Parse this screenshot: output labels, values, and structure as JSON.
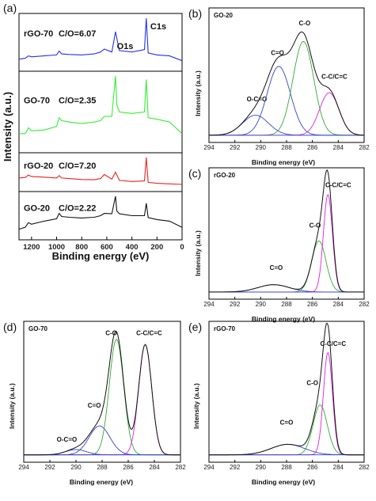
{
  "panels": [
    {
      "id": "a",
      "letter": "(a)",
      "xlabel": "Binding energy (eV)",
      "ylabel": "Intensity (a.u.)"
    },
    {
      "id": "b",
      "letter": "(b)",
      "sample": "GO-20",
      "xlabel": "Binding energy (eV)",
      "ylabel": "Intensity (a.u.)"
    },
    {
      "id": "c",
      "letter": "(c)",
      "sample": "rGO-20",
      "xlabel": "Binding energy (eV)",
      "ylabel": "Intensity (a.u.)"
    },
    {
      "id": "d",
      "letter": "(d)",
      "sample": "GO-70",
      "xlabel": "Binding energy (eV)",
      "ylabel": "Intensity (a.u.)"
    },
    {
      "id": "e",
      "letter": "(e)",
      "sample": "rGO-70",
      "xlabel": "Binding energy (eV)",
      "ylabel": "Intensity (a.u.)"
    }
  ],
  "colors": {
    "envelope": "#111111",
    "c_o_c": "#3344cc",
    "c_o": "#33aa33",
    "c_eq_o": "#3344cc",
    "o_c_eq_o": "#3344cc",
    "c_c": "#e020e0"
  },
  "chart_data": [
    {
      "panel": "a",
      "type": "line",
      "xlabel": "Binding energy (eV)",
      "ylabel": "Intensity (a.u.)",
      "xlim": [
        1300,
        0
      ],
      "xticks": [
        "1200",
        "1000",
        "800",
        "600",
        "400",
        "200",
        "0"
      ],
      "annotations": [
        "C1s",
        "O1s"
      ],
      "series": [
        {
          "name": "rGO-70",
          "label": "C/O=6.07",
          "color": "#2233ee",
          "x": [
            1300,
            1250,
            1225,
            1200,
            1100,
            1000,
            980,
            960,
            900,
            800,
            700,
            650,
            620,
            560,
            531,
            500,
            400,
            300,
            285,
            270,
            200,
            100,
            0
          ],
          "y": [
            0.15,
            0.17,
            0.22,
            0.2,
            0.22,
            0.24,
            0.32,
            0.26,
            0.25,
            0.24,
            0.26,
            0.3,
            0.36,
            0.3,
            0.72,
            0.33,
            0.3,
            0.35,
            1.0,
            0.28,
            0.24,
            0.22,
            0.12
          ]
        },
        {
          "name": "GO-70",
          "label": "C/O=2.35",
          "color": "#33ee33",
          "x": [
            1300,
            1250,
            1225,
            1200,
            1100,
            1000,
            980,
            960,
            900,
            800,
            700,
            650,
            620,
            560,
            531,
            520,
            500,
            400,
            300,
            285,
            270,
            200,
            100,
            0
          ],
          "y": [
            0.2,
            0.2,
            0.28,
            0.24,
            0.25,
            0.3,
            0.42,
            0.38,
            0.36,
            0.34,
            0.36,
            0.38,
            0.44,
            0.44,
            1.0,
            0.6,
            0.5,
            0.48,
            0.5,
            0.95,
            0.42,
            0.4,
            0.36,
            0.2
          ]
        },
        {
          "name": "rGO-20",
          "label": "C/O=7.20",
          "color": "#ee2222",
          "x": [
            1300,
            1250,
            1225,
            1200,
            1100,
            1000,
            980,
            960,
            900,
            800,
            700,
            650,
            620,
            560,
            531,
            500,
            400,
            300,
            285,
            270,
            200,
            100,
            0
          ],
          "y": [
            0.3,
            0.32,
            0.4,
            0.35,
            0.33,
            0.3,
            0.38,
            0.3,
            0.28,
            0.25,
            0.24,
            0.28,
            0.42,
            0.26,
            0.5,
            0.22,
            0.18,
            0.2,
            1.0,
            0.15,
            0.12,
            0.1,
            0.08
          ]
        },
        {
          "name": "GO-20",
          "label": "C/O=2.22",
          "color": "#111111",
          "x": [
            1300,
            1250,
            1225,
            1200,
            1100,
            1000,
            980,
            960,
            900,
            800,
            700,
            650,
            620,
            560,
            531,
            520,
            500,
            400,
            300,
            285,
            270,
            200,
            100,
            0
          ],
          "y": [
            0.15,
            0.2,
            0.32,
            0.28,
            0.36,
            0.42,
            0.56,
            0.48,
            0.46,
            0.44,
            0.46,
            0.5,
            0.56,
            0.55,
            1.0,
            0.62,
            0.55,
            0.5,
            0.5,
            0.82,
            0.45,
            0.4,
            0.36,
            0.2
          ]
        }
      ]
    },
    {
      "panel": "b",
      "type": "line",
      "title": "GO-20",
      "xlabel": "Binding energy (eV)",
      "ylabel": "Intensity (a.u.)",
      "xlim": [
        294,
        282
      ],
      "xticks": [
        "294",
        "292",
        "290",
        "288",
        "286",
        "284",
        "282"
      ],
      "baseline": 0.02,
      "peaks": [
        {
          "name": "O-C=O",
          "center": 290.4,
          "height": 0.16,
          "width": 1.0,
          "color": "#3344cc"
        },
        {
          "name": "C=O",
          "center": 288.6,
          "height": 0.55,
          "width": 0.9,
          "color": "#3344cc"
        },
        {
          "name": "C-O",
          "center": 286.7,
          "height": 0.75,
          "width": 0.8,
          "color": "#33aa33"
        },
        {
          "name": "C-C/C=C",
          "center": 284.7,
          "height": 0.34,
          "width": 0.75,
          "color": "#e020e0"
        }
      ]
    },
    {
      "panel": "c",
      "type": "line",
      "title": "rGO-20",
      "xlabel": "Binding energy (eV)",
      "ylabel": "Intensity (a.u.)",
      "xlim": [
        294,
        282
      ],
      "xticks": [
        "294",
        "292",
        "290",
        "288",
        "286",
        "284",
        "282"
      ],
      "baseline": 0.02,
      "peaks": [
        {
          "name": "C=O",
          "center": 289.0,
          "height": 0.06,
          "width": 1.2,
          "color": "#3344cc"
        },
        {
          "name": "C-O",
          "center": 285.5,
          "height": 0.42,
          "width": 0.55,
          "color": "#33aa33"
        },
        {
          "name": "C-C/C=C",
          "center": 284.8,
          "height": 0.8,
          "width": 0.35,
          "color": "#e020e0"
        }
      ]
    },
    {
      "panel": "d",
      "type": "line",
      "title": "GO-70",
      "xlabel": "Binding energy (eV)",
      "ylabel": "Intensity (a.u.)",
      "xlim": [
        294,
        282
      ],
      "xticks": [
        "294",
        "292",
        "290",
        "288",
        "286",
        "284",
        "282"
      ],
      "baseline": 0.02,
      "peaks": [
        {
          "name": "O-C=O",
          "center": 290.0,
          "height": 0.04,
          "width": 0.8,
          "color": "#3344cc"
        },
        {
          "name": "C=O",
          "center": 288.2,
          "height": 0.22,
          "width": 0.8,
          "color": "#3344cc"
        },
        {
          "name": "C-O",
          "center": 286.9,
          "height": 0.88,
          "width": 0.55,
          "color": "#33aa33"
        },
        {
          "name": "C-C/C=C",
          "center": 284.7,
          "height": 0.84,
          "width": 0.5,
          "color": "#e020e0"
        }
      ]
    },
    {
      "panel": "e",
      "type": "line",
      "title": "rGO-70",
      "xlabel": "Binding energy (eV)",
      "ylabel": "Intensity (a.u.)",
      "xlim": [
        294,
        282
      ],
      "xticks": [
        "294",
        "292",
        "290",
        "288",
        "286",
        "284",
        "282"
      ],
      "baseline": 0.02,
      "peaks": [
        {
          "name": "C=O",
          "center": 287.9,
          "height": 0.08,
          "width": 1.3,
          "color": "#3344cc"
        },
        {
          "name": "C-O",
          "center": 285.4,
          "height": 0.38,
          "width": 0.55,
          "color": "#33aa33"
        },
        {
          "name": "C-C/C=C",
          "center": 284.8,
          "height": 0.78,
          "width": 0.35,
          "color": "#e020e0"
        }
      ]
    }
  ]
}
